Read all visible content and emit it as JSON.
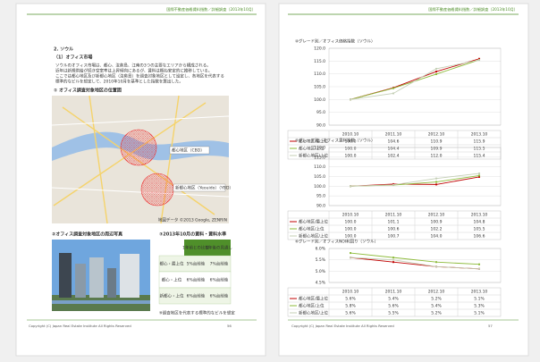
{
  "pages": [
    {
      "header": "国際不動産価格賃料指数／詳細調査（2013年10月）",
      "footer": "Copyright (C) Japan Real Estate Institute All Rights Reserved",
      "page_number": "56"
    },
    {
      "header": "国際不動産価格賃料指数／詳細調査（2013年10月）",
      "footer": "Copyright (C) Japan Real Estate Institute All Rights Reserved",
      "page_number": "57"
    }
  ],
  "section": "2. ソウル",
  "subsection": "（1）オフィス市場",
  "paragraph": [
    "ソウルのオフィス市場は、都心、汝矣島、江南の3つの主要なエリアから構成される。",
    "近年は新規供給が続き空室率は上昇傾向にあるが、賃料は概ね安定的に推移している。",
    "ここでは都心地区及び新都心地区（汝矣島）を調査対象地区として設定し、各地区を代表する",
    "標準的なビルを想定して、2010年10月を基準とした指数を算出した。"
  ],
  "map": {
    "heading": "① オフィス調査対象地区の位置図",
    "labels": [
      "都心地区（CBD）",
      "新都心地区（Yeouido）（YBD）"
    ],
    "credit": "地図データ ©2013 Google, ZENRIN"
  },
  "photo": {
    "heading": "②オフィス調査対象地区の周辺写真"
  },
  "table": {
    "heading": "③2013年10月の賃料・賃料水準",
    "header": [
      "1年前との比較",
      "1年後の見通し"
    ],
    "rows": [
      [
        "都心・最上位",
        "5%台前後",
        "7%台前後"
      ],
      [
        "都心・上位",
        "6%台前後",
        "6%台前後"
      ],
      [
        "新都心・上位",
        "6%台前後",
        "6%台前後"
      ]
    ],
    "note": "※調査地区を代表する標準的なビルを想定"
  },
  "chart_data": [
    {
      "type": "line",
      "title": "④グレード別／オフィス価格指数（ソウル）",
      "categories": [
        "2010.10",
        "2011.10",
        "2012.10",
        "2013.10"
      ],
      "ylim": [
        90,
        120
      ],
      "yticks": [
        {
          "value": 90,
          "label": "90.0"
        },
        {
          "value": 95,
          "label": "95.0"
        },
        {
          "value": 100,
          "label": "100.0"
        },
        {
          "value": 105,
          "label": "105.0"
        },
        {
          "value": 110,
          "label": "110.0"
        },
        {
          "value": 115,
          "label": "115.0"
        },
        {
          "value": 120,
          "label": "120.0"
        }
      ],
      "grid": true,
      "series": [
        {
          "name": "都心地区/最上位",
          "color": "#c00000",
          "values": [
            100,
            104.6,
            110.9,
            115.9
          ],
          "value_labels": [
            "100.0",
            "104.6",
            "110.9",
            "115.9"
          ]
        },
        {
          "name": "都心地区/上位",
          "color": "#8dbb3a",
          "values": [
            100,
            104.4,
            109.9,
            115.5
          ],
          "value_labels": [
            "100.0",
            "104.4",
            "109.9",
            "115.5"
          ]
        },
        {
          "name": "新都心地区/上位",
          "color": "#c4cfb6",
          "values": [
            100,
            102.4,
            112.0,
            115.4
          ],
          "value_labels": [
            "100.0",
            "102.4",
            "112.0",
            "115.4"
          ]
        }
      ]
    },
    {
      "type": "line",
      "title": "⑤グレード別／オフィス賃料指数（ソウル）",
      "categories": [
        "2010.10",
        "2011.10",
        "2012.10",
        "2013.10"
      ],
      "ylim": [
        90,
        120
      ],
      "yticks": [
        {
          "value": 90,
          "label": "90.0"
        },
        {
          "value": 95,
          "label": "95.0"
        },
        {
          "value": 100,
          "label": "100.0"
        },
        {
          "value": 105,
          "label": "105.0"
        },
        {
          "value": 110,
          "label": "110.0"
        },
        {
          "value": 115,
          "label": "115.0"
        },
        {
          "value": 120,
          "label": "120.0"
        }
      ],
      "grid": true,
      "series": [
        {
          "name": "都心地区/最上位",
          "color": "#c00000",
          "values": [
            100,
            101.1,
            100.9,
            104.8
          ],
          "value_labels": [
            "100.0",
            "101.1",
            "100.9",
            "104.8"
          ]
        },
        {
          "name": "都心地区/上位",
          "color": "#8dbb3a",
          "values": [
            100,
            100.6,
            102.2,
            105.5
          ],
          "value_labels": [
            "100.0",
            "100.6",
            "102.2",
            "105.5"
          ]
        },
        {
          "name": "新都心地区/上位",
          "color": "#c4cfb6",
          "values": [
            100,
            100.7,
            104.0,
            106.6
          ],
          "value_labels": [
            "100.0",
            "100.7",
            "104.0",
            "106.6"
          ]
        }
      ]
    },
    {
      "type": "line",
      "title": "⑥グレード別／オフィスNOI利回り（ソウル）",
      "categories": [
        "2010.10",
        "2011.10",
        "2012.10",
        "2013.10"
      ],
      "ylim": [
        4.5,
        6.0
      ],
      "yticks": [
        {
          "value": 4.5,
          "label": "4.5%"
        },
        {
          "value": 5.0,
          "label": "5.0%"
        },
        {
          "value": 5.5,
          "label": "5.5%"
        },
        {
          "value": 6.0,
          "label": "6.0%"
        }
      ],
      "grid": true,
      "series": [
        {
          "name": "都心地区/最上位",
          "color": "#c00000",
          "values": [
            5.6,
            5.4,
            5.2,
            5.1
          ],
          "value_labels": [
            "5.6%",
            "5.4%",
            "5.2%",
            "5.1%"
          ]
        },
        {
          "name": "都心地区/上位",
          "color": "#8dbb3a",
          "values": [
            5.8,
            5.6,
            5.4,
            5.3
          ],
          "value_labels": [
            "5.8%",
            "5.6%",
            "5.4%",
            "5.3%"
          ]
        },
        {
          "name": "新都心地区/上位",
          "color": "#c4cfb6",
          "values": [
            5.6,
            5.5,
            5.2,
            5.1
          ],
          "value_labels": [
            "5.6%",
            "5.5%",
            "5.2%",
            "5.1%"
          ]
        }
      ]
    }
  ]
}
